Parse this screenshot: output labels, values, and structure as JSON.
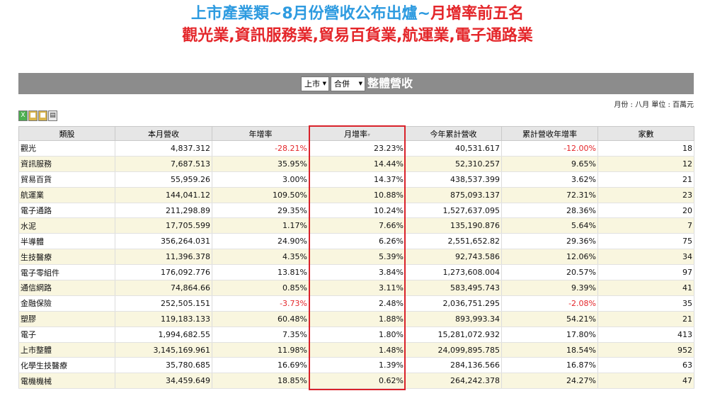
{
  "title": {
    "line1_blue": "上市產業類~8月份營收公布出爐~",
    "line1_red": "月增率前五名",
    "line2": "觀光業,資訊服務業,貿易百貨業,航運業,電子通路業"
  },
  "panel": {
    "market_select": "上市",
    "type_select": "合併",
    "heading": "整體營收",
    "unit_note": "月份 : 八月 單位 : 百萬元"
  },
  "toolbar": {
    "icons": [
      "excel-icon",
      "lock-icon",
      "lock-icon",
      "print-icon"
    ]
  },
  "table": {
    "headers": [
      "類股",
      "本月營收",
      "年增率",
      "月增率",
      "今年累計營收",
      "累計營收年增率",
      "家數"
    ],
    "sort_indicator": "▾",
    "rows": [
      {
        "name": "觀光",
        "revenue": "4,837.312",
        "yoy": "-28.21%",
        "mom": "23.23%",
        "ytd": "40,531.617",
        "ytd_yoy": "-12.00%",
        "count": "18"
      },
      {
        "name": "資訊服務",
        "revenue": "7,687.513",
        "yoy": "35.95%",
        "mom": "14.44%",
        "ytd": "52,310.257",
        "ytd_yoy": "9.65%",
        "count": "12"
      },
      {
        "name": "貿易百貨",
        "revenue": "55,959.26",
        "yoy": "3.00%",
        "mom": "14.37%",
        "ytd": "438,537.399",
        "ytd_yoy": "3.62%",
        "count": "21"
      },
      {
        "name": "航運業",
        "revenue": "144,041.12",
        "yoy": "109.50%",
        "mom": "10.88%",
        "ytd": "875,093.137",
        "ytd_yoy": "72.31%",
        "count": "23"
      },
      {
        "name": "電子通路",
        "revenue": "211,298.89",
        "yoy": "29.35%",
        "mom": "10.24%",
        "ytd": "1,527,637.095",
        "ytd_yoy": "28.36%",
        "count": "20"
      },
      {
        "name": "水泥",
        "revenue": "17,705.599",
        "yoy": "1.17%",
        "mom": "7.66%",
        "ytd": "135,190.876",
        "ytd_yoy": "5.64%",
        "count": "7"
      },
      {
        "name": "半導體",
        "revenue": "356,264.031",
        "yoy": "24.90%",
        "mom": "6.26%",
        "ytd": "2,551,652.82",
        "ytd_yoy": "29.36%",
        "count": "75"
      },
      {
        "name": "生技醫療",
        "revenue": "11,396.378",
        "yoy": "4.35%",
        "mom": "5.39%",
        "ytd": "92,743.586",
        "ytd_yoy": "12.06%",
        "count": "34"
      },
      {
        "name": "電子零組件",
        "revenue": "176,092.776",
        "yoy": "13.81%",
        "mom": "3.84%",
        "ytd": "1,273,608.004",
        "ytd_yoy": "20.57%",
        "count": "97"
      },
      {
        "name": "通信網路",
        "revenue": "74,864.66",
        "yoy": "0.85%",
        "mom": "3.11%",
        "ytd": "583,495.743",
        "ytd_yoy": "9.39%",
        "count": "41"
      },
      {
        "name": "金融保險",
        "revenue": "252,505.151",
        "yoy": "-3.73%",
        "mom": "2.48%",
        "ytd": "2,036,751.295",
        "ytd_yoy": "-2.08%",
        "count": "35"
      },
      {
        "name": "塑膠",
        "revenue": "119,183.133",
        "yoy": "60.48%",
        "mom": "1.88%",
        "ytd": "893,993.34",
        "ytd_yoy": "54.21%",
        "count": "21"
      },
      {
        "name": "電子",
        "revenue": "1,994,682.55",
        "yoy": "7.35%",
        "mom": "1.80%",
        "ytd": "15,281,072.932",
        "ytd_yoy": "17.80%",
        "count": "413"
      },
      {
        "name": "上市整體",
        "revenue": "3,145,169.961",
        "yoy": "11.98%",
        "mom": "1.48%",
        "ytd": "24,099,895.785",
        "ytd_yoy": "18.54%",
        "count": "952"
      },
      {
        "name": "化學生技醫療",
        "revenue": "35,780.685",
        "yoy": "16.69%",
        "mom": "1.39%",
        "ytd": "284,136.566",
        "ytd_yoy": "16.87%",
        "count": "63"
      },
      {
        "name": "電機機械",
        "revenue": "34,459.649",
        "yoy": "18.85%",
        "mom": "0.62%",
        "ytd": "264,242.378",
        "ytd_yoy": "24.27%",
        "count": "47"
      }
    ]
  },
  "colors": {
    "title_blue": "#2e9be0",
    "title_red": "#e4262a",
    "negative": "#e4262a",
    "header_bar": "#8c8c8c",
    "highlight_border": "#d9222a",
    "row_alt": "#f9f6df"
  }
}
